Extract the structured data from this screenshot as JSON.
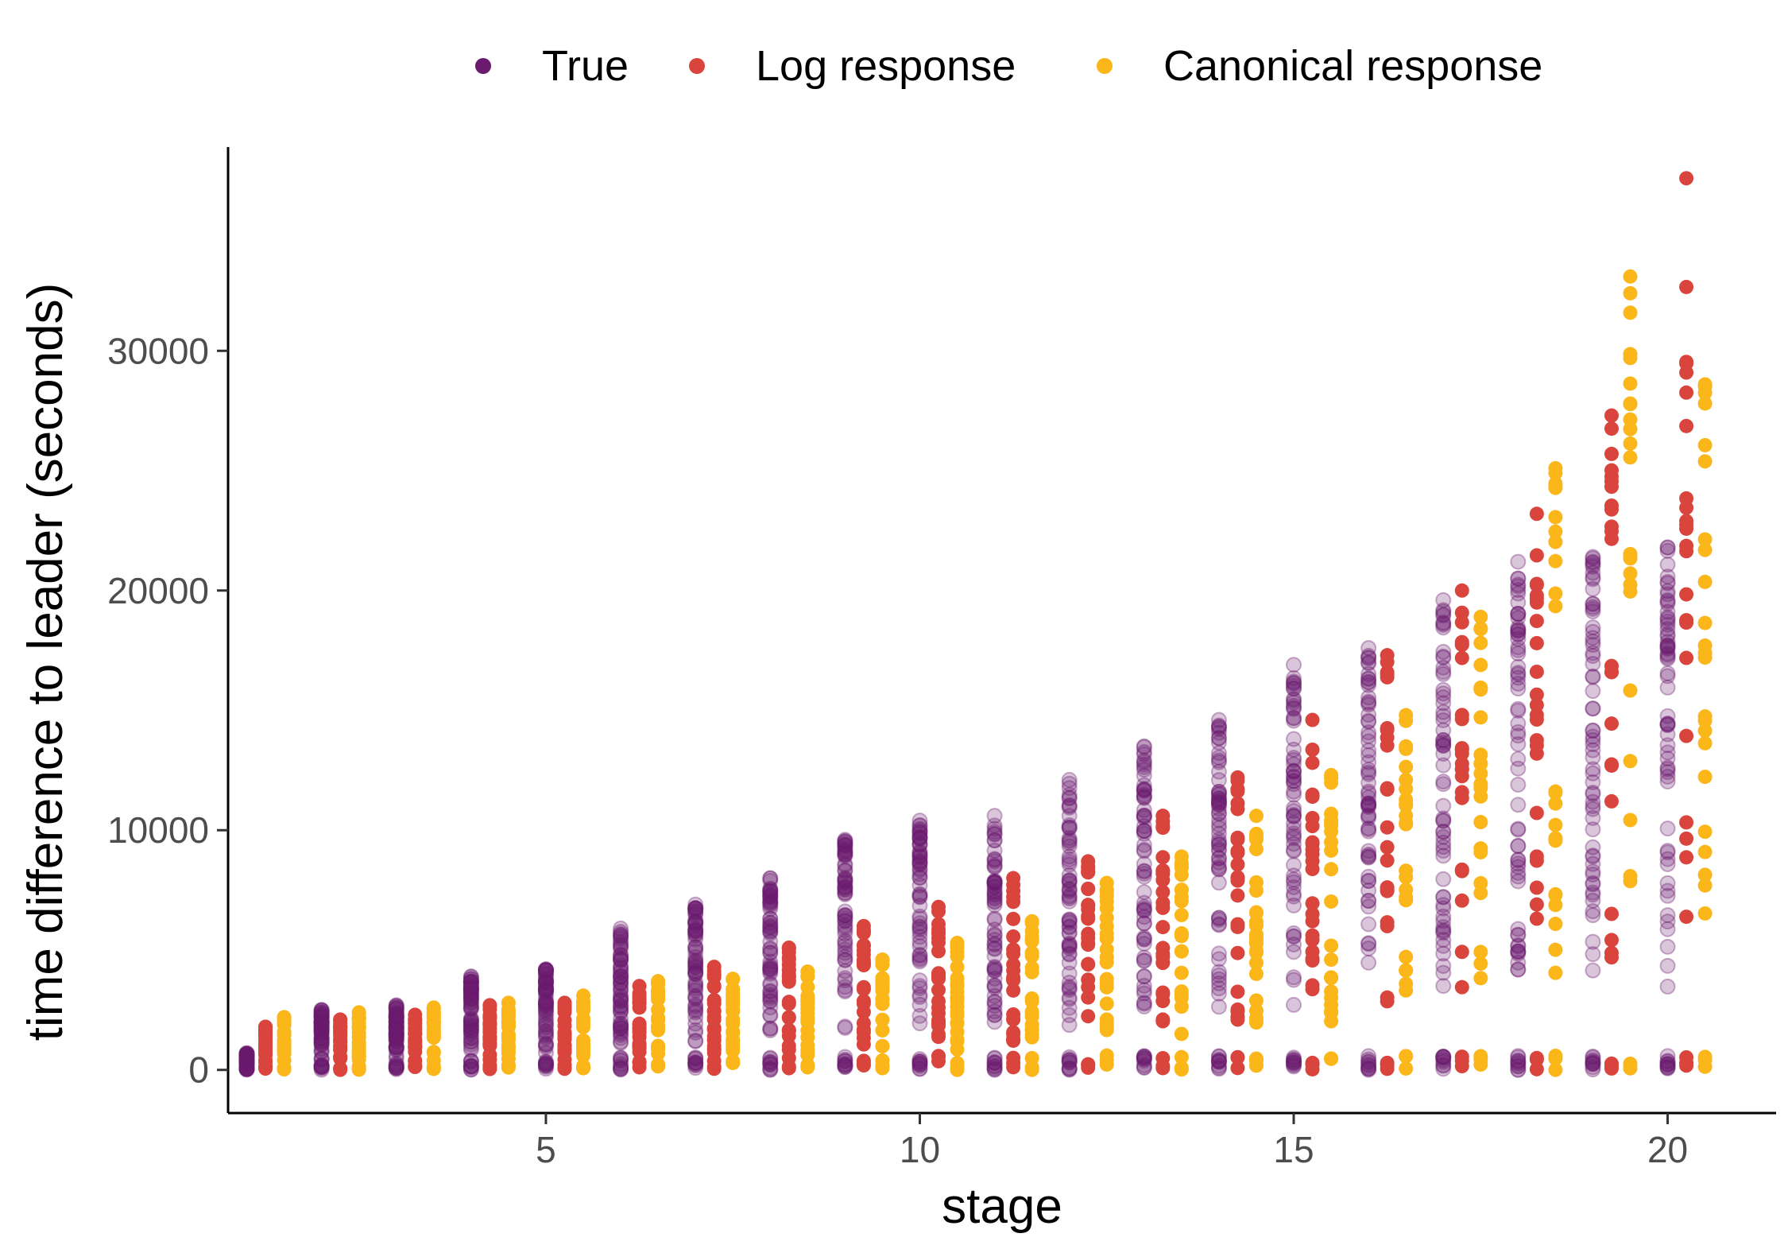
{
  "chart_data": {
    "type": "scatter",
    "xlabel": "stage",
    "ylabel": "time difference to leader (seconds)",
    "xlim": [
      0.75,
      21.45
    ],
    "ylim": [
      -1800,
      38500
    ],
    "x_ticks": [
      5,
      10,
      15,
      20
    ],
    "y_ticks": [
      0,
      10000,
      20000,
      30000
    ],
    "grid": false,
    "legend": "top",
    "series": [
      {
        "name": "True",
        "color": "#6a1b6e",
        "x_offset": 0.0,
        "opacity": 0.25,
        "max_by_stage": [
          700,
          2500,
          2700,
          3900,
          4200,
          5900,
          6900,
          8000,
          9600,
          10400,
          10600,
          12100,
          13500,
          14600,
          16900,
          17600,
          19600,
          21200,
          21400,
          21800
        ]
      },
      {
        "name": "Log response",
        "color": "#d9453d",
        "x_offset": 0.25,
        "opacity": 1.0,
        "max_by_stage": [
          1800,
          2100,
          2300,
          2700,
          2800,
          3500,
          4300,
          5100,
          6000,
          6800,
          8000,
          8700,
          10600,
          12200,
          14600,
          17300,
          20000,
          23200,
          27300,
          37200
        ]
      },
      {
        "name": "Canonical response",
        "color": "#fbb61a",
        "x_offset": 0.5,
        "opacity": 1.0,
        "max_by_stage": [
          2200,
          2400,
          2600,
          2800,
          3100,
          3700,
          3800,
          4100,
          4600,
          5300,
          6200,
          7800,
          8900,
          10600,
          12300,
          14800,
          18900,
          25100,
          33100,
          28600
        ]
      }
    ]
  }
}
